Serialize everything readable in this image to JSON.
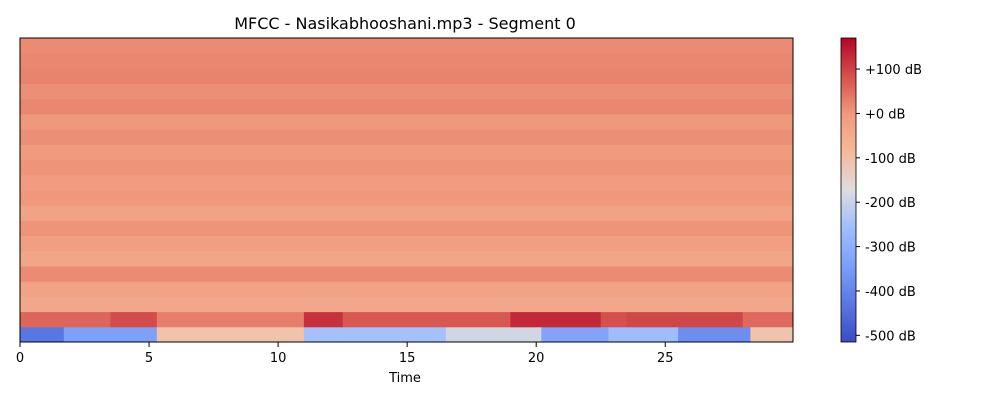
{
  "chart_data": {
    "type": "heatmap",
    "title": "MFCC - Nasikabhooshani.mp3 - Segment 0",
    "xlabel": "Time",
    "ylabel": "",
    "x_ticks": [
      0,
      5,
      10,
      15,
      20,
      25
    ],
    "xlim": [
      0,
      29.95
    ],
    "n_coefficients": 20,
    "colormap": "coolwarm",
    "colorbar": {
      "ticks": [
        100,
        0,
        -100,
        -200,
        -300,
        -400,
        -500
      ],
      "tick_labels": [
        "+100 dB",
        "+0 dB",
        "-100 dB",
        "-200 dB",
        "-300 dB",
        "-400 dB",
        "-500 dB"
      ],
      "range": [
        -515,
        170
      ]
    },
    "coefficient_profile": [
      {
        "coef": 0,
        "segments": [
          [
            0,
            1.7,
            -430
          ],
          [
            1.7,
            5.3,
            -340
          ],
          [
            5.3,
            11.0,
            -110
          ],
          [
            11.0,
            16.5,
            -250
          ],
          [
            16.5,
            20.2,
            -190
          ],
          [
            20.2,
            22.8,
            -330
          ],
          [
            22.8,
            25.5,
            -260
          ],
          [
            25.5,
            28.3,
            -380
          ],
          [
            28.3,
            29.95,
            -110
          ]
        ]
      },
      {
        "coef": 1,
        "segments": [
          [
            0,
            3.5,
            60
          ],
          [
            3.5,
            5.3,
            90
          ],
          [
            5.3,
            11.0,
            30
          ],
          [
            11.0,
            12.5,
            120
          ],
          [
            12.5,
            19.0,
            75
          ],
          [
            19.0,
            22.5,
            130
          ],
          [
            22.5,
            23.5,
            85
          ],
          [
            23.5,
            28.0,
            95
          ],
          [
            28.0,
            29.95,
            55
          ]
        ]
      },
      {
        "coef": 2,
        "values": -40
      },
      {
        "coef": 3,
        "values": -25
      },
      {
        "coef": 4,
        "values": 15
      },
      {
        "coef": 5,
        "values": -35
      },
      {
        "coef": 6,
        "values": -15
      },
      {
        "coef": 7,
        "values": 5
      },
      {
        "coef": 8,
        "values": -25
      },
      {
        "coef": 9,
        "values": 0
      },
      {
        "coef": 10,
        "values": -10
      },
      {
        "coef": 11,
        "values": 5
      },
      {
        "coef": 12,
        "values": -5
      },
      {
        "coef": 13,
        "values": 10
      },
      {
        "coef": 14,
        "values": 0
      },
      {
        "coef": 15,
        "values": 20
      },
      {
        "coef": 16,
        "values": 10
      },
      {
        "coef": 17,
        "values": 25
      },
      {
        "coef": 18,
        "values": 20
      },
      {
        "coef": 19,
        "values": 15
      }
    ]
  }
}
